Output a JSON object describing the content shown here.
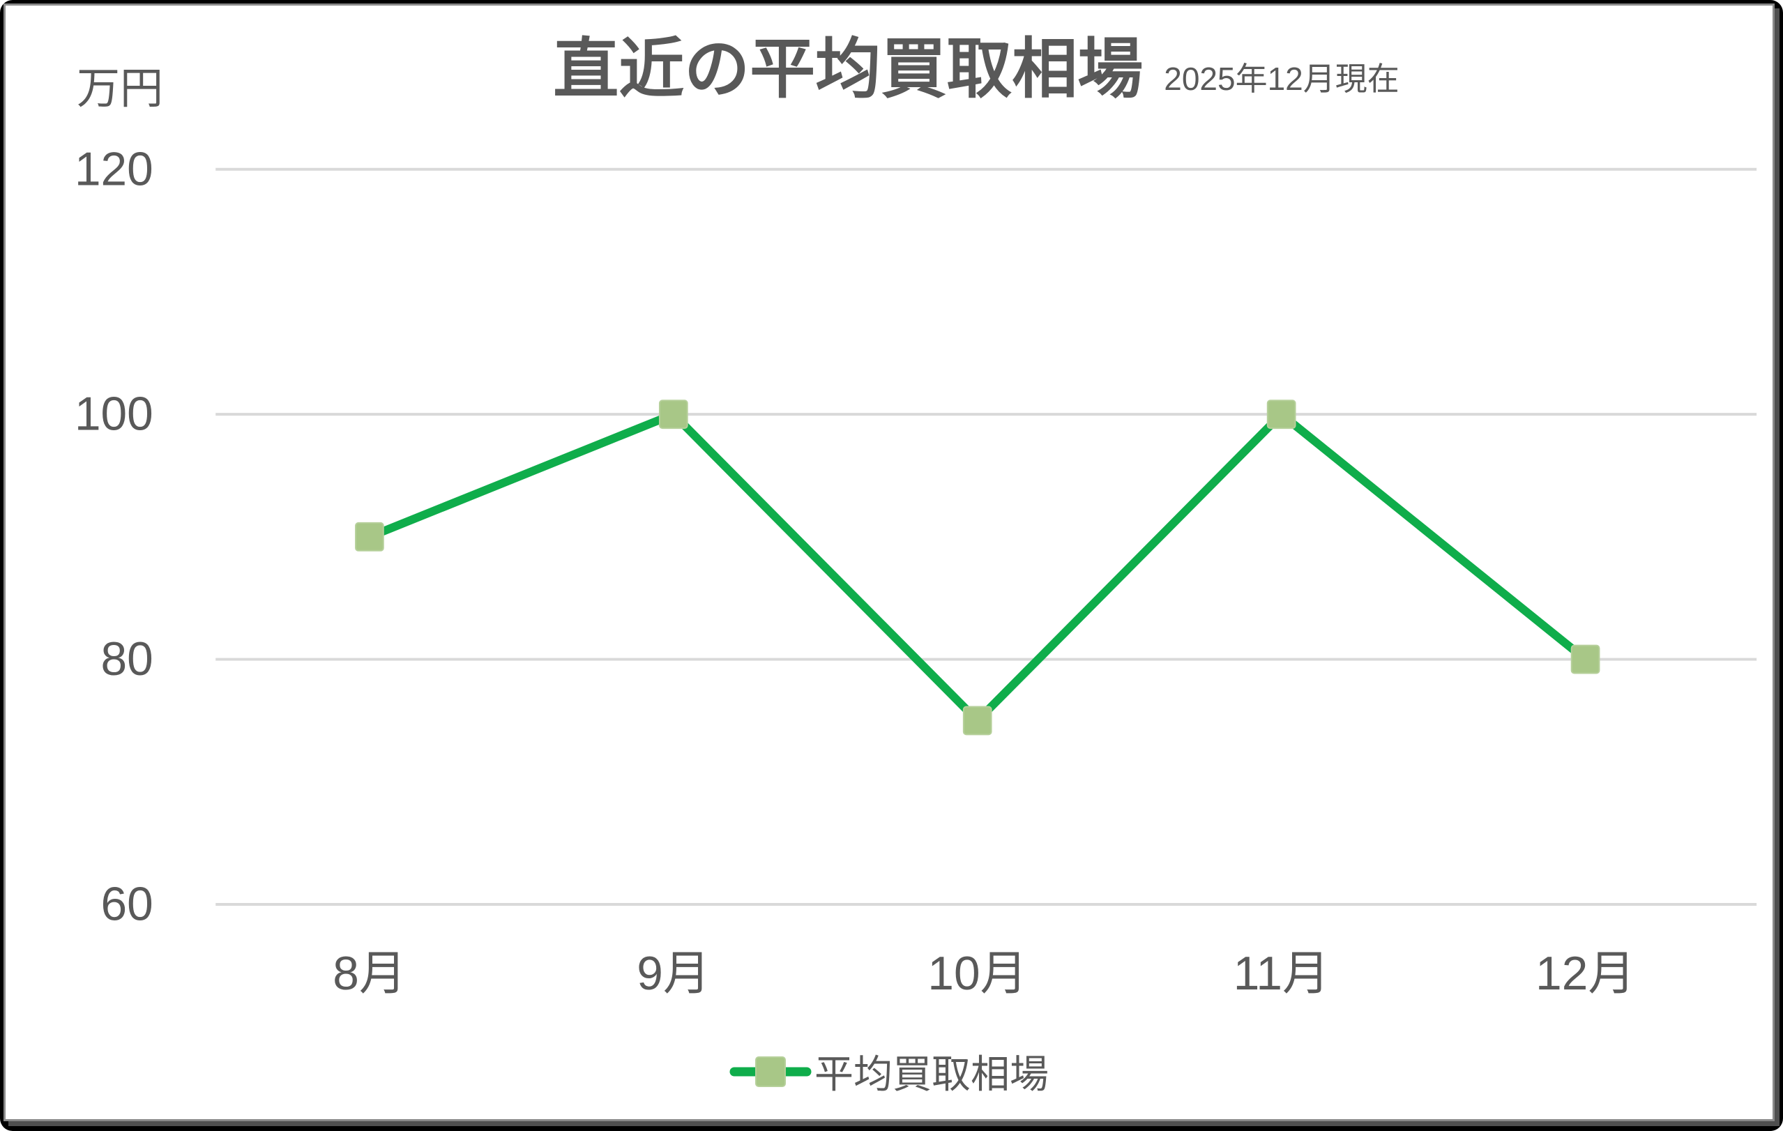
{
  "header": {
    "title": "直近の平均買取相場",
    "subtitle": "2025年12月現在"
  },
  "y_axis": {
    "unit_label": "万円",
    "ticks": [
      120,
      100,
      80,
      60
    ]
  },
  "legend": {
    "label": "平均買取相場"
  },
  "colors": {
    "line": "#0fad4b",
    "marker_fill": "#a8c787",
    "marker_border": "#b6d09b",
    "grid": "#d9d9d9",
    "text": "#595959"
  },
  "chart_data": {
    "type": "line",
    "title": "直近の平均買取相場",
    "subtitle": "2025年12月現在",
    "ylabel": "万円",
    "categories": [
      "8月",
      "9月",
      "10月",
      "11月",
      "12月"
    ],
    "series": [
      {
        "name": "平均買取相場",
        "values": [
          90,
          100,
          75,
          100,
          80
        ]
      }
    ],
    "ylim": [
      60,
      120
    ],
    "yticks": [
      120,
      100,
      80,
      60
    ],
    "grid": true,
    "legend_position": "bottom",
    "marker": "square"
  }
}
